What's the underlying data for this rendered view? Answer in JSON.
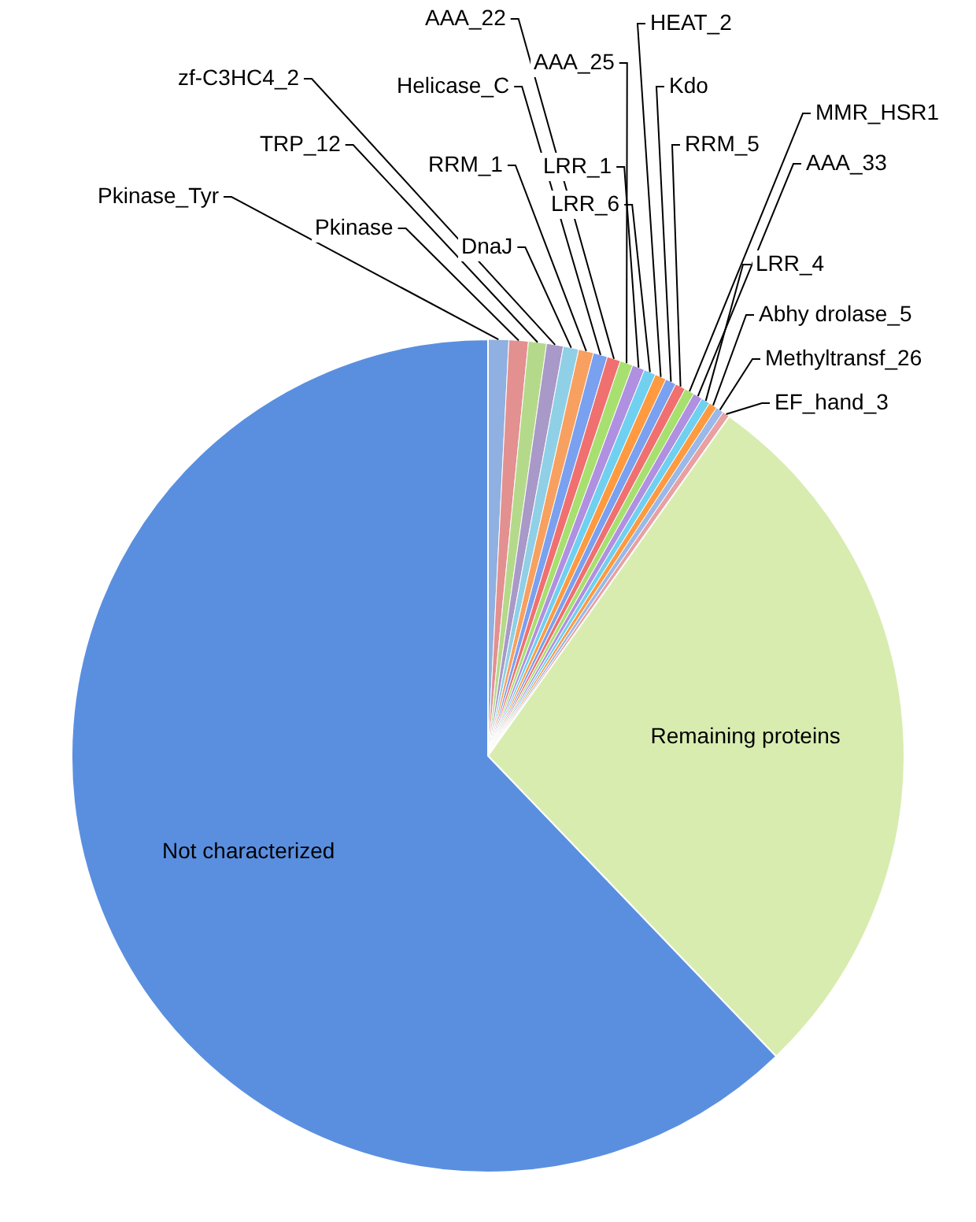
{
  "chart_data": {
    "type": "pie",
    "categories": [
      "Pkinase_Tyr",
      "Pkinase",
      "TRP_12",
      "zf-C3HC4_2",
      "DnaJ",
      "RRM_1",
      "Helicase_C",
      "AAA_22",
      "AAA_25",
      "LRR_1",
      "LRR_6",
      "HEAT_2",
      "Kdo",
      "RRM_5",
      "MMR_HSR1",
      "AAA_33",
      "LRR_4",
      "Abhy drolase_5",
      "Methyltransf_26",
      "EF_hand_3",
      "Remaining proteins",
      "Not characterized"
    ],
    "values": [
      0.8,
      0.75,
      0.7,
      0.65,
      0.6,
      0.58,
      0.55,
      0.52,
      0.5,
      0.48,
      0.46,
      0.44,
      0.42,
      0.4,
      0.38,
      0.36,
      0.34,
      0.32,
      0.3,
      0.28,
      28,
      62.17
    ],
    "colors": [
      "#8fb0e0",
      "#e39090",
      "#b5d98a",
      "#a899c8",
      "#8fd0e6",
      "#f8a060",
      "#7aa0f0",
      "#f07070",
      "#a8e070",
      "#b090e0",
      "#70d0f0",
      "#ff9a40",
      "#7aa0f0",
      "#f07070",
      "#a8e070",
      "#b090e0",
      "#70d0f0",
      "#ff9a40",
      "#9ab8e8",
      "#e8a0a0",
      "#d8ecb0",
      "#5a8fe0"
    ],
    "legend": false
  }
}
